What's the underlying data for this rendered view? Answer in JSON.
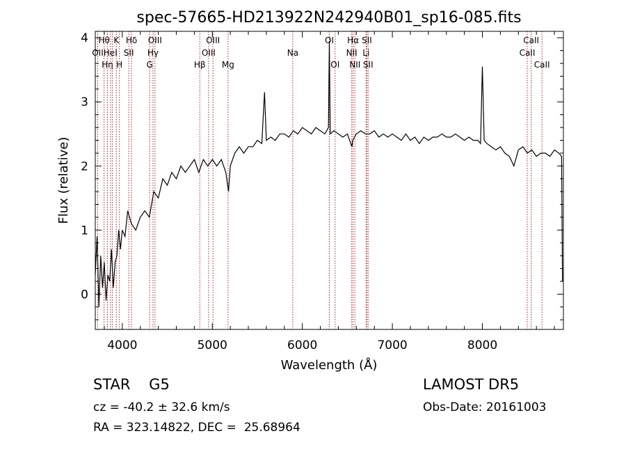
{
  "chart_data": {
    "type": "line",
    "title": "spec-57665-HD213922N242940B01_sp16-085.fits",
    "xlabel": "Wavelength (Å)",
    "ylabel": "Flux (relative)",
    "xlim": [
      3700,
      8900
    ],
    "ylim": [
      -0.55,
      4.1
    ],
    "xticks": [
      4000,
      5000,
      6000,
      7000,
      8000
    ],
    "yticks": [
      0,
      1,
      2,
      3,
      4
    ],
    "grid": false,
    "series": [
      {
        "x": [
          3700,
          3720,
          3740,
          3760,
          3780,
          3800,
          3820,
          3840,
          3860,
          3880,
          3900,
          3920,
          3940,
          3960,
          3980,
          4000,
          4030,
          4060,
          4100,
          4150,
          4200,
          4250,
          4300,
          4350,
          4400,
          4450,
          4500,
          4550,
          4600,
          4650,
          4700,
          4750,
          4800,
          4850,
          4900,
          4950,
          5000,
          5050,
          5100,
          5150,
          5180,
          5200,
          5250,
          5300,
          5350,
          5400,
          5450,
          5500,
          5550,
          5580,
          5600,
          5650,
          5700,
          5750,
          5800,
          5850,
          5900,
          5950,
          6000,
          6050,
          6100,
          6150,
          6200,
          6250,
          6290,
          6300,
          6310,
          6350,
          6400,
          6450,
          6500,
          6550,
          6560,
          6600,
          6650,
          6700,
          6750,
          6800,
          6850,
          6900,
          6950,
          7000,
          7050,
          7100,
          7150,
          7200,
          7250,
          7300,
          7350,
          7400,
          7450,
          7500,
          7550,
          7600,
          7650,
          7700,
          7750,
          7800,
          7850,
          7900,
          7950,
          7980,
          8000,
          8020,
          8050,
          8100,
          8150,
          8200,
          8250,
          8300,
          8350,
          8400,
          8450,
          8500,
          8550,
          8600,
          8650,
          8700,
          8750,
          8800,
          8850,
          8880,
          8890
        ],
        "values": [
          0.3,
          0.9,
          -0.2,
          0.6,
          0.1,
          0.5,
          -0.1,
          0.3,
          0.2,
          0.7,
          0.1,
          0.5,
          0.6,
          1.0,
          0.7,
          1.0,
          0.9,
          1.3,
          1.1,
          1.0,
          1.2,
          1.3,
          1.2,
          1.6,
          1.5,
          1.8,
          1.7,
          1.9,
          1.8,
          2.0,
          1.9,
          2.0,
          2.1,
          1.9,
          2.1,
          2.0,
          2.1,
          2.0,
          2.1,
          1.9,
          1.6,
          2.0,
          2.2,
          2.3,
          2.2,
          2.3,
          2.3,
          2.4,
          2.35,
          3.15,
          2.4,
          2.45,
          2.4,
          2.5,
          2.5,
          2.45,
          2.55,
          2.5,
          2.6,
          2.55,
          2.5,
          2.6,
          2.55,
          2.5,
          2.6,
          3.95,
          2.5,
          2.55,
          2.5,
          2.45,
          2.5,
          2.3,
          2.4,
          2.5,
          2.55,
          2.5,
          2.5,
          2.55,
          2.45,
          2.5,
          2.45,
          2.5,
          2.45,
          2.4,
          2.5,
          2.4,
          2.45,
          2.35,
          2.45,
          2.4,
          2.45,
          2.45,
          2.5,
          2.45,
          2.45,
          2.5,
          2.45,
          2.4,
          2.45,
          2.4,
          2.4,
          2.35,
          3.55,
          2.4,
          2.35,
          2.3,
          2.25,
          2.3,
          2.2,
          2.15,
          2.0,
          2.25,
          2.3,
          2.2,
          2.25,
          2.15,
          2.2,
          2.2,
          2.15,
          2.25,
          2.2,
          2.15,
          0.2
        ]
      }
    ],
    "lines": [
      {
        "x": 3727,
        "label": "OII",
        "row": 1
      },
      {
        "x": 3798,
        "label": "Hθ",
        "row": 0
      },
      {
        "x": 3835,
        "label": "Hη",
        "row": 2
      },
      {
        "x": 3869,
        "label": "HeI",
        "row": 1
      },
      {
        "x": 3889,
        "label": "",
        "row": 0
      },
      {
        "x": 3934,
        "label": "K",
        "row": 0
      },
      {
        "x": 3968,
        "label": "H",
        "row": 2
      },
      {
        "x": 4072,
        "label": "SII",
        "row": 1
      },
      {
        "x": 4102,
        "label": "Hδ",
        "row": 0
      },
      {
        "x": 4304,
        "label": "G",
        "row": 2
      },
      {
        "x": 4341,
        "label": "Hγ",
        "row": 1
      },
      {
        "x": 4363,
        "label": "OIII",
        "row": 0
      },
      {
        "x": 4861,
        "label": "Hβ",
        "row": 2
      },
      {
        "x": 4959,
        "label": "OIII",
        "row": 1
      },
      {
        "x": 5007,
        "label": "OIII",
        "row": 0
      },
      {
        "x": 5175,
        "label": "Mg",
        "row": 2
      },
      {
        "x": 5894,
        "label": "Na",
        "row": 1
      },
      {
        "x": 6300,
        "label": "OI",
        "row": 0
      },
      {
        "x": 6364,
        "label": "OI",
        "row": 2
      },
      {
        "x": 6548,
        "label": "NII",
        "row": 1
      },
      {
        "x": 6563,
        "label": "Hα",
        "row": 0
      },
      {
        "x": 6584,
        "label": "NII",
        "row": 2
      },
      {
        "x": 6708,
        "label": "Li",
        "row": 1
      },
      {
        "x": 6717,
        "label": "SII",
        "row": 0
      },
      {
        "x": 6731,
        "label": "SII",
        "row": 2
      },
      {
        "x": 8498,
        "label": "CaII",
        "row": 1
      },
      {
        "x": 8542,
        "label": "CaII",
        "row": 0
      },
      {
        "x": 8662,
        "label": "CaII",
        "row": 2
      }
    ],
    "line_color": "#b22222"
  },
  "footer": {
    "object_class": "STAR    G5",
    "survey": "LAMOST DR5",
    "redshift": "cz = -40.2 ± 32.6 km/s",
    "obs_date": "Obs-Date: 20161003",
    "coords": "RA = 323.14822, DEC =  25.68964"
  }
}
